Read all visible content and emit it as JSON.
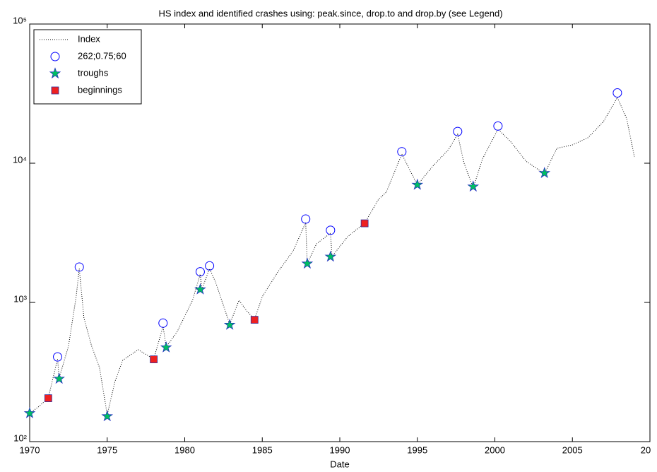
{
  "chart_data": {
    "type": "line",
    "title": "HS index and identified crashes using: peak.since, drop.to and drop.by (see Legend)",
    "x_label": "Date",
    "xlim": [
      1970,
      2010
    ],
    "xticks": [
      1970,
      1975,
      1980,
      1985,
      1990,
      1995,
      2000,
      2005,
      {
        "value": 2010,
        "label": "20"
      }
    ],
    "ylim": [
      100,
      100000
    ],
    "yticks": [
      {
        "value": 100,
        "label": "10²"
      },
      {
        "value": 1000,
        "label": "10³"
      },
      {
        "value": 10000,
        "label": "10⁴"
      },
      {
        "value": 100000,
        "label": "10⁵"
      }
    ],
    "y_scale": "log",
    "grid": false,
    "legend_position": "upper-left",
    "series": [
      {
        "name": "Index",
        "color": "#000000",
        "style": "dotted",
        "x": [
          1970.0,
          1970.6,
          1971.2,
          1971.8,
          1971.9,
          1972.5,
          1973.0,
          1973.2,
          1973.5,
          1974.0,
          1974.5,
          1975.0,
          1975.5,
          1976.0,
          1977.0,
          1978.0,
          1978.6,
          1978.8,
          1979.5,
          1980.5,
          1981.0,
          1981.1,
          1981.6,
          1982.0,
          1982.9,
          1983.5,
          1984.0,
          1984.5,
          1985.0,
          1986.0,
          1987.0,
          1987.8,
          1987.9,
          1988.5,
          1989.4,
          1989.5,
          1990.5,
          1991.6,
          1992.5,
          1993.0,
          1994.0,
          1995.0,
          1996.0,
          1997.0,
          1997.6,
          1998.0,
          1998.6,
          1999.2,
          2000.2,
          2001.0,
          2002.0,
          2003.2,
          2004.0,
          2005.0,
          2006.0,
          2007.0,
          2007.9,
          2008.5,
          2009.0
        ],
        "values": [
          160,
          179,
          206,
          392,
          286,
          484,
          1100,
          1750,
          773,
          484,
          341,
          156,
          270,
          384,
          457,
          392,
          672,
          479,
          612,
          1036,
          1597,
          1234,
          1752,
          1387,
          697,
          1036,
          869,
          755,
          1100,
          1653,
          2349,
          3750,
          1901,
          2637,
          3143,
          2138,
          2967,
          3706,
          5508,
          6194,
          11640,
          6966,
          9543,
          12480,
          16140,
          10120,
          6640,
          10720,
          17540,
          14360,
          10360,
          8400,
          12790,
          13550,
          15240,
          19900,
          29650,
          20890,
          11110
        ]
      },
      {
        "name": "262;0.75;60",
        "color": "#0000ff",
        "marker": "circle",
        "x": [
          1971.8,
          1973.2,
          1978.6,
          1981.0,
          1981.6,
          1987.8,
          1989.4,
          1994.0,
          1997.6,
          2000.2,
          2007.9
        ],
        "values": [
          406,
          1795,
          710,
          1660,
          1830,
          3970,
          3300,
          12100,
          16900,
          18500,
          32000
        ]
      },
      {
        "name": "troughs",
        "color": "#00c060",
        "marker": "star",
        "x": [
          1970.0,
          1971.9,
          1975.0,
          1978.8,
          1981.0,
          1982.9,
          1987.9,
          1989.4,
          1995.0,
          1998.6,
          2003.2
        ],
        "values": [
          160,
          283,
          152,
          475,
          1240,
          690,
          1900,
          2130,
          7000,
          6800,
          8500
        ]
      },
      {
        "name": "beginnings",
        "color": "#ee2020",
        "marker": "square",
        "x": [
          1971.2,
          1978.0,
          1984.5,
          1991.6
        ],
        "values": [
          205,
          390,
          750,
          3700
        ]
      }
    ]
  }
}
